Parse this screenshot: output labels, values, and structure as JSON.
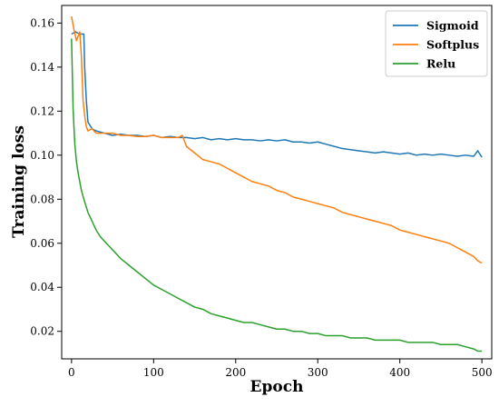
{
  "chart_data": {
    "type": "line",
    "title": "",
    "xlabel": "Epoch",
    "ylabel": "Training loss",
    "xlim": [
      -12,
      512
    ],
    "ylim": [
      0.0075,
      0.168
    ],
    "xticks": [
      0,
      100,
      200,
      300,
      400,
      500
    ],
    "yticks": [
      0.02,
      0.04,
      0.06,
      0.08,
      0.1,
      0.12,
      0.14,
      0.16
    ],
    "xtick_labels": [
      "0",
      "100",
      "200",
      "300",
      "400",
      "500"
    ],
    "ytick_labels": [
      "0.02",
      "0.04",
      "0.06",
      "0.08",
      "0.10",
      "0.12",
      "0.14",
      "0.16"
    ],
    "grid": false,
    "legend_position": "top-right",
    "legend": [
      "Sigmoid",
      "Softplus",
      "Relu"
    ],
    "series": [
      {
        "name": "Sigmoid",
        "color": "#1f77b4",
        "x": [
          0,
          5,
          10,
          15,
          16,
          18,
          20,
          25,
          30,
          40,
          50,
          60,
          70,
          80,
          90,
          100,
          110,
          120,
          130,
          140,
          150,
          160,
          170,
          180,
          190,
          200,
          210,
          220,
          230,
          240,
          250,
          260,
          270,
          280,
          290,
          300,
          310,
          320,
          330,
          340,
          350,
          360,
          370,
          380,
          390,
          400,
          410,
          420,
          430,
          440,
          450,
          460,
          470,
          480,
          490,
          495,
          500
        ],
        "y": [
          0.155,
          0.156,
          0.155,
          0.155,
          0.14,
          0.125,
          0.115,
          0.112,
          0.111,
          0.11,
          0.109,
          0.1095,
          0.109,
          0.109,
          0.1085,
          0.109,
          0.108,
          0.1085,
          0.108,
          0.108,
          0.1075,
          0.108,
          0.107,
          0.1075,
          0.107,
          0.1075,
          0.107,
          0.107,
          0.1065,
          0.107,
          0.1065,
          0.107,
          0.106,
          0.106,
          0.1055,
          0.106,
          0.105,
          0.104,
          0.103,
          0.1025,
          0.102,
          0.1015,
          0.101,
          0.1015,
          0.101,
          0.1005,
          0.101,
          0.1,
          0.1005,
          0.1,
          0.1005,
          0.1,
          0.0995,
          0.1,
          0.0995,
          0.102,
          0.099
        ]
      },
      {
        "name": "Softplus",
        "color": "#ff7f0e",
        "x": [
          0,
          3,
          6,
          10,
          12,
          14,
          16,
          18,
          20,
          25,
          30,
          40,
          50,
          60,
          70,
          80,
          90,
          100,
          110,
          120,
          130,
          135,
          140,
          150,
          160,
          170,
          180,
          190,
          200,
          210,
          220,
          230,
          240,
          250,
          260,
          270,
          280,
          290,
          300,
          310,
          320,
          330,
          340,
          350,
          360,
          370,
          380,
          390,
          400,
          410,
          420,
          430,
          440,
          450,
          460,
          470,
          480,
          490,
          495,
          500
        ],
        "y": [
          0.163,
          0.157,
          0.152,
          0.156,
          0.145,
          0.125,
          0.118,
          0.113,
          0.111,
          0.112,
          0.11,
          0.11,
          0.11,
          0.109,
          0.109,
          0.1085,
          0.1085,
          0.109,
          0.108,
          0.108,
          0.108,
          0.109,
          0.104,
          0.101,
          0.098,
          0.097,
          0.096,
          0.094,
          0.092,
          0.09,
          0.088,
          0.087,
          0.086,
          0.084,
          0.083,
          0.081,
          0.08,
          0.079,
          0.078,
          0.077,
          0.076,
          0.074,
          0.073,
          0.072,
          0.071,
          0.07,
          0.069,
          0.068,
          0.066,
          0.065,
          0.064,
          0.063,
          0.062,
          0.061,
          0.06,
          0.058,
          0.056,
          0.054,
          0.052,
          0.051
        ]
      },
      {
        "name": "Relu",
        "color": "#2ca02c",
        "x": [
          0,
          2,
          4,
          6,
          8,
          10,
          12,
          15,
          20,
          25,
          30,
          35,
          40,
          50,
          60,
          70,
          80,
          90,
          100,
          110,
          120,
          130,
          140,
          150,
          160,
          170,
          180,
          190,
          200,
          210,
          220,
          230,
          240,
          250,
          260,
          270,
          280,
          290,
          300,
          310,
          320,
          330,
          340,
          350,
          360,
          370,
          380,
          390,
          400,
          410,
          420,
          430,
          440,
          450,
          460,
          470,
          480,
          490,
          495,
          500
        ],
        "y": [
          0.153,
          0.12,
          0.105,
          0.097,
          0.092,
          0.088,
          0.084,
          0.08,
          0.074,
          0.07,
          0.066,
          0.063,
          0.061,
          0.057,
          0.053,
          0.05,
          0.047,
          0.044,
          0.041,
          0.039,
          0.037,
          0.035,
          0.033,
          0.031,
          0.03,
          0.028,
          0.027,
          0.026,
          0.025,
          0.024,
          0.024,
          0.023,
          0.022,
          0.021,
          0.021,
          0.02,
          0.02,
          0.019,
          0.019,
          0.018,
          0.018,
          0.018,
          0.017,
          0.017,
          0.017,
          0.016,
          0.016,
          0.016,
          0.016,
          0.015,
          0.015,
          0.015,
          0.015,
          0.014,
          0.014,
          0.014,
          0.013,
          0.012,
          0.011,
          0.011
        ]
      }
    ]
  }
}
